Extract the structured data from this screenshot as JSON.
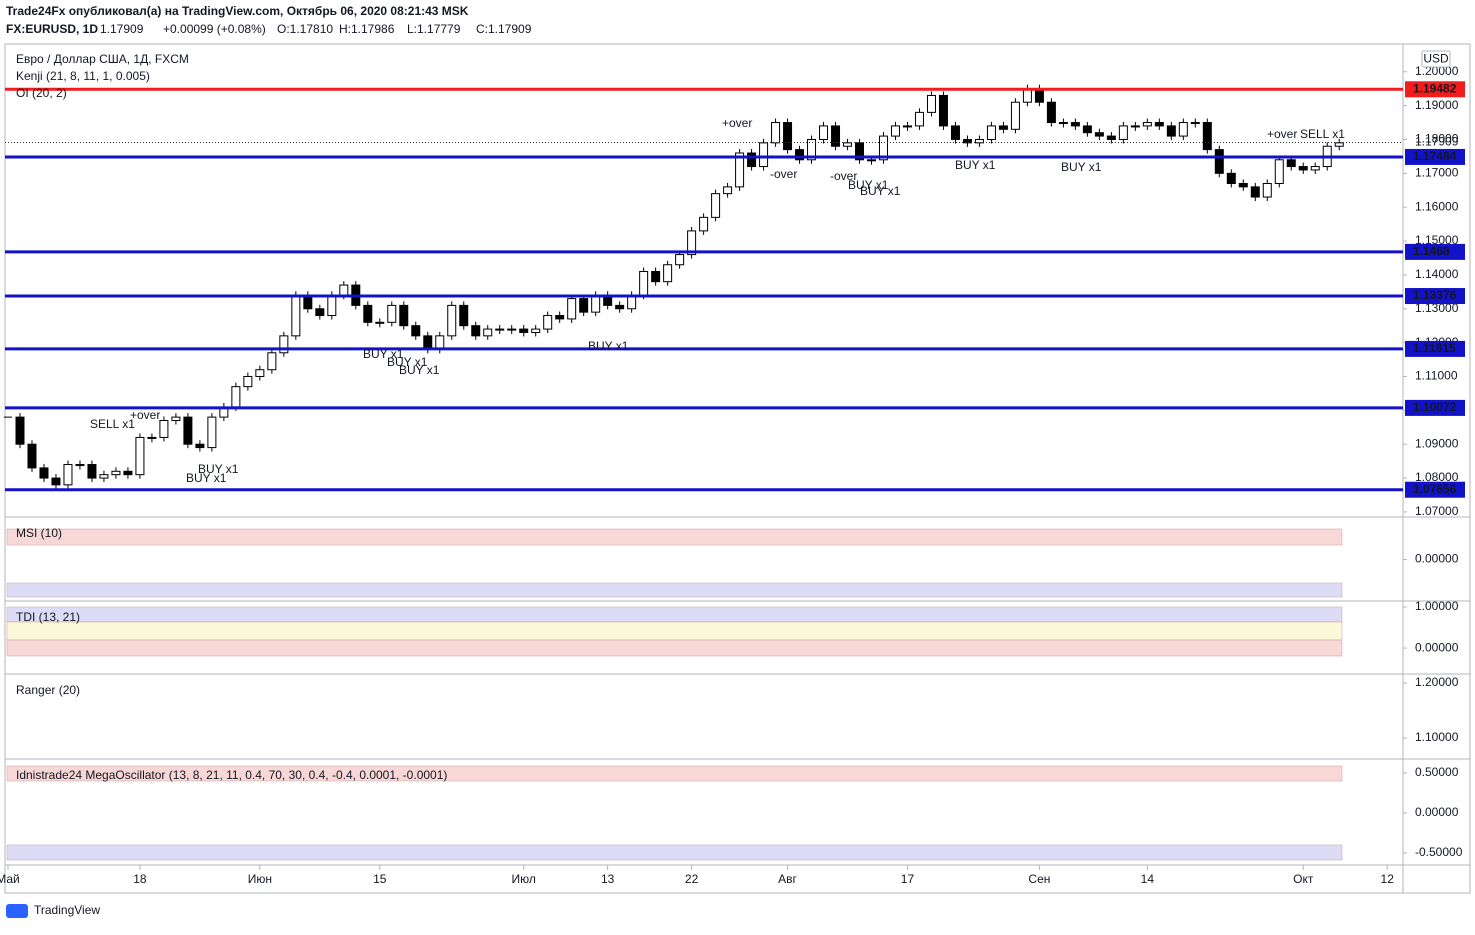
{
  "header": {
    "line1": "Trade24Fx опубликовал(а) на TradingView.com, Октябрь 06, 2020 08:21:43 MSK",
    "symbol": "FX:EURUSD, 1D",
    "last": "1.17909",
    "change": "+0.00099 (+0.08%)",
    "o": "O:1.17810",
    "h": "H:1.17986",
    "l": "L:1.17779",
    "c": "C:1.17909"
  },
  "chart_data": {
    "type": "candlestick",
    "title": "Евро / Доллар США, 1Д, FXCM",
    "indicators": [
      "Kenji (21, 8, 11, 1, 0.005)",
      "OI (20, 2)"
    ],
    "currency": "USD",
    "close": [
      1.098,
      1.09,
      1.083,
      1.08,
      1.078,
      1.084,
      1.084,
      1.08,
      1.081,
      1.082,
      1.081,
      1.092,
      1.092,
      1.097,
      1.098,
      1.09,
      1.089,
      1.098,
      1.101,
      1.107,
      1.11,
      1.112,
      1.117,
      1.122,
      1.134,
      1.13,
      1.128,
      1.134,
      1.137,
      1.131,
      1.126,
      1.126,
      1.131,
      1.125,
      1.122,
      1.118,
      1.122,
      1.131,
      1.125,
      1.122,
      1.124,
      1.124,
      1.124,
      1.123,
      1.124,
      1.128,
      1.127,
      1.133,
      1.129,
      1.134,
      1.131,
      1.13,
      1.134,
      1.141,
      1.138,
      1.143,
      1.146,
      1.153,
      1.157,
      1.164,
      1.166,
      1.176,
      1.172,
      1.179,
      1.185,
      1.177,
      1.174,
      1.18,
      1.184,
      1.178,
      1.179,
      1.174,
      1.174,
      1.181,
      1.184,
      1.184,
      1.188,
      1.193,
      1.184,
      1.18,
      1.179,
      1.18,
      1.184,
      1.183,
      1.191,
      1.195,
      1.191,
      1.185,
      1.185,
      1.184,
      1.182,
      1.181,
      1.18,
      1.184,
      1.184,
      1.185,
      1.184,
      1.181,
      1.185,
      1.185,
      1.177,
      1.17,
      1.167,
      1.166,
      1.163,
      1.167,
      1.174,
      1.172,
      1.171,
      1.172,
      1.178,
      1.179
    ],
    "ylim": [
      1.0685,
      1.2079
    ],
    "yticks": [
      {
        "value": 1.2,
        "label": "1.20000"
      },
      {
        "value": 1.19,
        "label": "1.19000"
      },
      {
        "value": 1.18,
        "label": "1.18000"
      },
      {
        "value": 1.17,
        "label": "1.17000"
      },
      {
        "value": 1.16,
        "label": "1.16000"
      },
      {
        "value": 1.15,
        "label": "1.15000"
      },
      {
        "value": 1.14,
        "label": "1.14000"
      },
      {
        "value": 1.13,
        "label": "1.13000"
      },
      {
        "value": 1.12,
        "label": "1.12000"
      },
      {
        "value": 1.11,
        "label": "1.11000"
      },
      {
        "value": 1.1,
        "label": "1.10000"
      },
      {
        "value": 1.09,
        "label": "1.09000"
      },
      {
        "value": 1.08,
        "label": "1.08000"
      },
      {
        "value": 1.07,
        "label": "1.07000"
      }
    ],
    "xlim": [
      0,
      116.4
    ],
    "xticks": [
      {
        "value": 0,
        "label": "Май"
      },
      {
        "value": 11,
        "label": "18"
      },
      {
        "value": 21,
        "label": "Июн"
      },
      {
        "value": 31,
        "label": "15"
      },
      {
        "value": 43,
        "label": "Июл"
      },
      {
        "value": 50,
        "label": "13"
      },
      {
        "value": 57,
        "label": "22"
      },
      {
        "value": 65,
        "label": "Авг"
      },
      {
        "value": 75,
        "label": "17"
      },
      {
        "value": 86,
        "label": "Сен"
      },
      {
        "value": 95,
        "label": "14"
      },
      {
        "value": 108,
        "label": "Окт"
      },
      {
        "value": 115,
        "label": "12"
      }
    ],
    "levels": [
      {
        "value": 1.19482,
        "color": "#f21c1c"
      },
      {
        "value": 1.17484,
        "color": "#1212c8"
      },
      {
        "value": 1.1468,
        "color": "#1212c8"
      },
      {
        "value": 1.13376,
        "color": "#1212c8"
      },
      {
        "value": 1.11815,
        "color": "#1212c8"
      },
      {
        "value": 1.10072,
        "color": "#1212c8"
      },
      {
        "value": 1.07656,
        "color": "#1212c8"
      }
    ],
    "last_price": 1.17909,
    "annotations": [
      "SELL x1",
      "+over",
      "BUY x1",
      "BUY x1",
      "BUY x1",
      "BUY x1",
      "BUY x1",
      "BUY x1",
      "+over",
      "-over",
      "-over",
      "BUY x1",
      "BUY x1",
      "BUY x1",
      "BUY x1",
      "+over",
      "SELL x1"
    ],
    "panes": [
      {
        "title": "MSI (10)",
        "ylim": [
          -1,
          1
        ],
        "yticks": [
          {
            "value": 0,
            "label": "0.00000"
          }
        ]
      },
      {
        "title": "TDI (13, 21)",
        "ylim": [
          -0.63,
          1.12
        ],
        "yticks": [
          {
            "value": 1,
            "label": "1.00000"
          },
          {
            "value": 0,
            "label": "0.00000"
          }
        ]
      },
      {
        "title": "Ranger (20)",
        "ylim": [
          1.062,
          1.2145
        ],
        "yticks": [
          {
            "value": 1.2,
            "label": "1.20000"
          },
          {
            "value": 1.1,
            "label": "1.10000"
          }
        ]
      },
      {
        "title": "Idnistrade24 MegaOscillator (13, 8, 21, 11, 0.4, 70, 30, 0.4, -0.4, 0.0001, -0.0001)",
        "ylim": [
          -0.65,
          0.6625
        ],
        "yticks": [
          {
            "value": 0.5,
            "label": "0.50000"
          },
          {
            "value": 0,
            "label": "0.00000"
          },
          {
            "value": -0.5,
            "label": "-0.50000"
          }
        ]
      }
    ]
  },
  "footer": "TradingView"
}
